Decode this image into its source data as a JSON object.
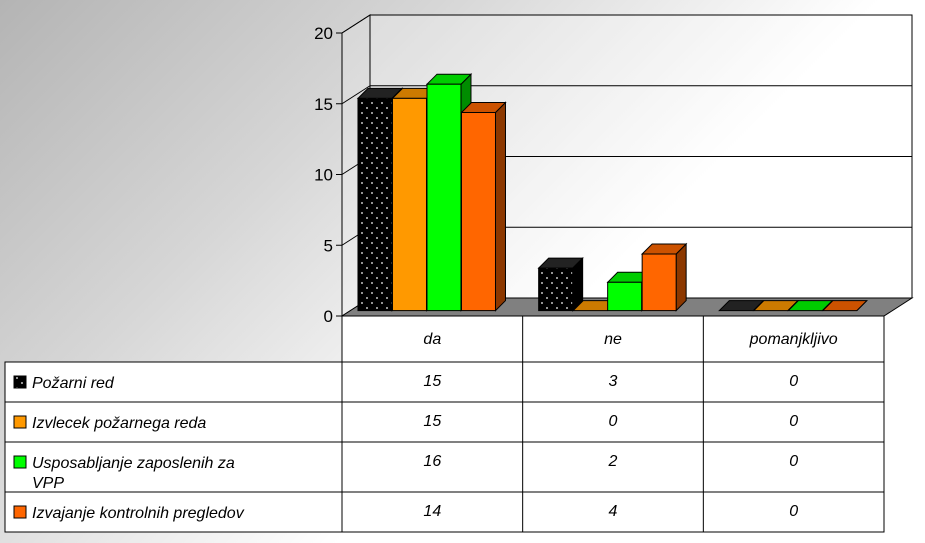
{
  "chart_data": {
    "type": "bar",
    "categories": [
      "da",
      "ne",
      "pomanjkljivo"
    ],
    "series": [
      {
        "name": "Požarni red",
        "values": [
          15,
          3,
          0
        ],
        "color": "#000000"
      },
      {
        "name": "Izvlecek požarnega reda",
        "values": [
          15,
          0,
          0
        ],
        "color": "#ff9900"
      },
      {
        "name": "Usposabljanje zaposlenih za VPP",
        "values": [
          16,
          2,
          0
        ],
        "color": "#00ff00"
      },
      {
        "name": "Izvajanje kontrolnih pregledov",
        "values": [
          14,
          4,
          0
        ],
        "color": "#ff6600"
      }
    ],
    "yticks": [
      "0",
      "5",
      "10",
      "15",
      "20"
    ],
    "ylim": [
      0,
      20
    ],
    "grid": true,
    "three_d": true,
    "data_table": true,
    "legend": "data-table-left"
  }
}
